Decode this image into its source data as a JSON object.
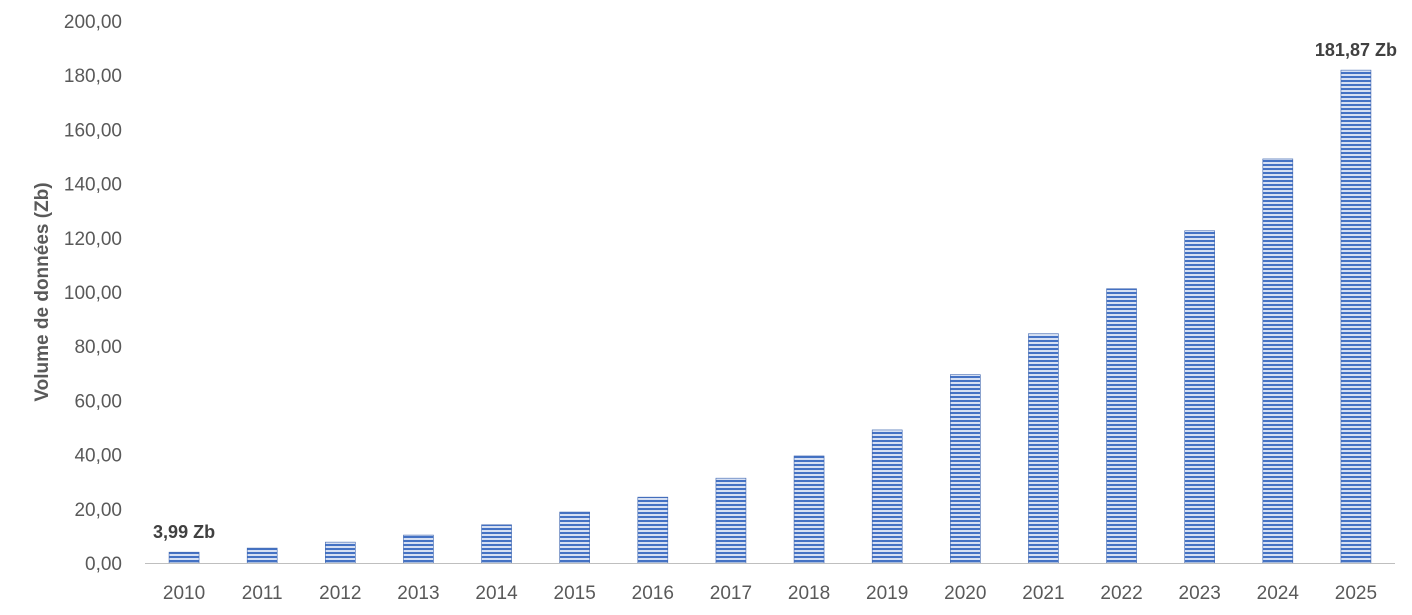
{
  "chart_data": {
    "type": "bar",
    "title": "",
    "xlabel": "",
    "ylabel": "Volume de données (Zb)",
    "ylim": [
      0,
      200
    ],
    "y_ticks": [
      "0,00",
      "20,00",
      "40,00",
      "60,00",
      "80,00",
      "100,00",
      "120,00",
      "140,00",
      "160,00",
      "180,00",
      "200,00"
    ],
    "categories": [
      "2010",
      "2011",
      "2012",
      "2013",
      "2014",
      "2015",
      "2016",
      "2017",
      "2018",
      "2019",
      "2020",
      "2021",
      "2022",
      "2023",
      "2024",
      "2025"
    ],
    "values": [
      3.99,
      5.5,
      7.7,
      10.3,
      14.1,
      18.8,
      24.3,
      31.3,
      39.5,
      49.1,
      69.5,
      84.6,
      101.2,
      122.6,
      149.1,
      181.87
    ],
    "data_labels": [
      {
        "category": "2010",
        "text": "3,99 Zb"
      },
      {
        "category": "2025",
        "text": "181,87 Zb"
      }
    ],
    "grid": false,
    "legend": "none",
    "colors": {
      "bar_stripe_dark": "#4472C4",
      "bar_stripe_light": "#D6E0F3",
      "bar_outline": "#3F66B0",
      "axis_line": "#BFBFBF",
      "text": "#595959",
      "data_label_text": "#404040"
    }
  }
}
